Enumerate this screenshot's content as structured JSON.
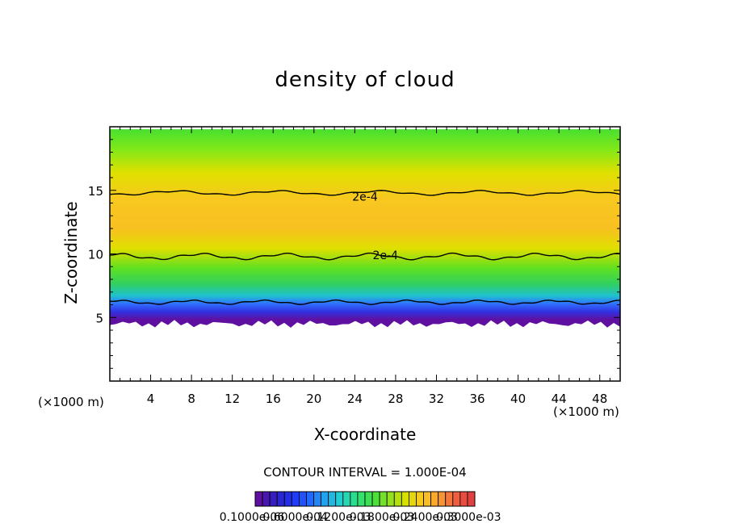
{
  "chart_data": {
    "type": "heatmap",
    "title": "density of cloud",
    "xlabel": "X-coordinate",
    "ylabel": "Z-coordinate",
    "x_unit": "(×1000 m)",
    "xlim": [
      0,
      50
    ],
    "ylim": [
      0,
      20
    ],
    "x_ticks": [
      4,
      8,
      12,
      16,
      20,
      24,
      28,
      32,
      36,
      40,
      44,
      48
    ],
    "y_ticks": [
      5,
      10,
      15
    ],
    "contour_interval_label": "CONTOUR INTERVAL = 1.000E-04",
    "contour_labels": [
      {
        "text": "2e-4",
        "x": 25,
        "z": 14.5
      },
      {
        "text": "2e-4",
        "x": 27,
        "z": 9.9
      }
    ],
    "cloud_layer": {
      "base_z": 4.5,
      "top_z": 19.8
    },
    "colorbar_labels": [
      "0.1000e-06",
      "0.6000e-04",
      "0.1200e-03",
      "0.1800e-03",
      "0.2400e-03",
      "0.3000e-03"
    ]
  },
  "colors": {
    "low": "#5a10a0",
    "mid_low": "#2040ff",
    "mid": "#30e040",
    "high": "#f0d000",
    "peak": "#ffb010"
  }
}
